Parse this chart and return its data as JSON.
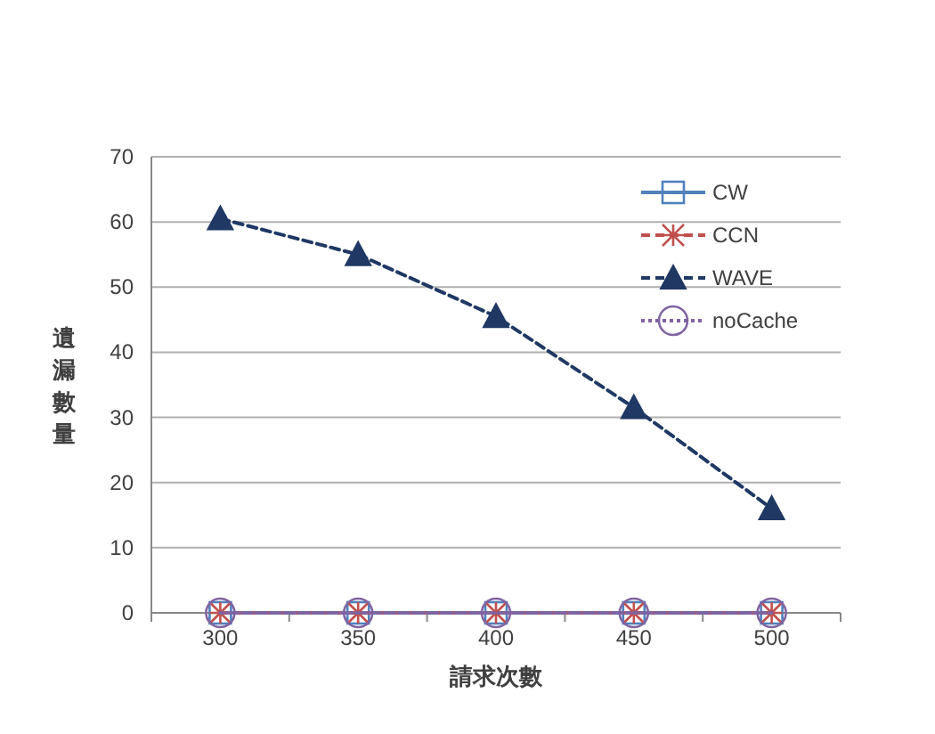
{
  "chart_data": {
    "type": "line",
    "xlabel": "請求次數",
    "ylabel": "遺漏數量",
    "categories": [
      "300",
      "350",
      "400",
      "450",
      "500"
    ],
    "ylim": [
      0,
      70
    ],
    "yticks": [
      0,
      10,
      20,
      30,
      40,
      50,
      60,
      70
    ],
    "grid": "y",
    "legend": "top right",
    "series": [
      {
        "name": "CW",
        "color": "#4f81bd",
        "values": [
          0,
          0,
          0,
          0,
          0
        ],
        "marker": "square",
        "line_style": "solid"
      },
      {
        "name": "CCN",
        "color": "#c0504d",
        "values": [
          0,
          0,
          0,
          0,
          0
        ],
        "marker": "cross",
        "line_style": "dashed"
      },
      {
        "name": "WAVE",
        "color": "#1f3864",
        "values": [
          60.5,
          55,
          45.5,
          31.5,
          16
        ],
        "marker": "triangle",
        "line_style": "dashed"
      },
      {
        "name": "noCache",
        "color": "#8064a2",
        "values": [
          0,
          0,
          0,
          0,
          0
        ],
        "marker": "circle",
        "line_style": "dotted"
      }
    ]
  }
}
